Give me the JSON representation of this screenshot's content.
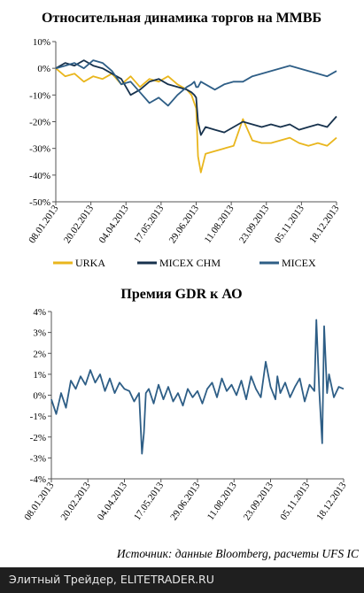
{
  "chart_data": [
    {
      "type": "line",
      "title": "Относительная динамика торгов на ММВБ",
      "x_labels": [
        "08.01.2013",
        "20.02.2013",
        "04.04.2013",
        "17.05.2013",
        "29.06.2013",
        "11.08.2013",
        "23.09.2013",
        "05.11.2013",
        "18.12.2013"
      ],
      "y_ticks": [
        "10%",
        "0%",
        "-10%",
        "-20%",
        "-30%",
        "-40%",
        "-50%"
      ],
      "ylim": [
        -50,
        10
      ],
      "grid": false,
      "legend_position": "bottom",
      "colors": {
        "URKA": "#e9b61d",
        "MICEX CHM": "#17324d",
        "MICEX": "#2e5e86"
      },
      "series": [
        {
          "name": "URKA",
          "x": [
            0,
            10,
            20,
            30,
            40,
            50,
            60,
            70,
            80,
            90,
            100,
            110,
            120,
            130,
            140,
            145,
            148,
            150,
            152,
            155,
            160,
            170,
            180,
            190,
            200,
            210,
            220,
            230,
            240,
            250,
            260,
            270,
            280,
            290,
            300
          ],
          "values": [
            0,
            -3,
            -2,
            -5,
            -3,
            -4,
            -2,
            -6,
            -3,
            -7,
            -4,
            -5,
            -3,
            -6,
            -8,
            -10,
            -13,
            -15,
            -33,
            -39,
            -32,
            -31,
            -30,
            -29,
            -19,
            -27,
            -28,
            -28,
            -27,
            -26,
            -28,
            -29,
            -28,
            -29,
            -26
          ]
        },
        {
          "name": "MICEX CHM",
          "x": [
            0,
            10,
            20,
            30,
            40,
            50,
            60,
            70,
            80,
            90,
            100,
            110,
            120,
            130,
            140,
            145,
            148,
            150,
            152,
            155,
            160,
            170,
            180,
            190,
            200,
            210,
            220,
            230,
            240,
            250,
            260,
            270,
            280,
            290,
            300
          ],
          "values": [
            0,
            2,
            1,
            3,
            1,
            0,
            -2,
            -4,
            -10,
            -8,
            -5,
            -4,
            -6,
            -7,
            -8,
            -9,
            -10,
            -11,
            -20,
            -25,
            -22,
            -23,
            -24,
            -22,
            -20,
            -21,
            -22,
            -21,
            -22,
            -21,
            -23,
            -22,
            -21,
            -22,
            -18
          ]
        },
        {
          "name": "MICEX",
          "x": [
            0,
            10,
            20,
            30,
            40,
            50,
            60,
            70,
            80,
            90,
            100,
            110,
            120,
            130,
            140,
            145,
            148,
            150,
            152,
            155,
            160,
            170,
            180,
            190,
            200,
            210,
            220,
            230,
            240,
            250,
            260,
            270,
            280,
            290,
            300
          ],
          "values": [
            0,
            1,
            2,
            0,
            3,
            2,
            -1,
            -6,
            -5,
            -9,
            -13,
            -11,
            -14,
            -10,
            -7,
            -6,
            -5,
            -7,
            -7,
            -5,
            -6,
            -8,
            -6,
            -5,
            -5,
            -3,
            -2,
            -1,
            0,
            1,
            0,
            -1,
            -2,
            -3,
            -1
          ]
        }
      ]
    },
    {
      "type": "line",
      "title": "Премия GDR к АО",
      "x_labels": [
        "08.01.2013",
        "20.02.2013",
        "04.04.2013",
        "17.05.2013",
        "29.06.2013",
        "11.08.2013",
        "23.09.2013",
        "05.11.2013",
        "18.12.2013"
      ],
      "y_ticks": [
        "4%",
        "3%",
        "2%",
        "1%",
        "0%",
        "-1%",
        "-2%",
        "-3%",
        "-4%"
      ],
      "ylim": [
        -4,
        4
      ],
      "grid": false,
      "series": [
        {
          "name": "",
          "x": [
            0,
            5,
            10,
            15,
            20,
            25,
            30,
            35,
            40,
            45,
            50,
            55,
            60,
            65,
            70,
            75,
            80,
            85,
            90,
            93,
            95,
            97,
            100,
            105,
            110,
            115,
            120,
            125,
            130,
            135,
            140,
            145,
            150,
            155,
            160,
            165,
            170,
            175,
            180,
            185,
            190,
            195,
            200,
            205,
            210,
            215,
            220,
            225,
            230,
            232,
            235,
            240,
            245,
            250,
            255,
            260,
            265,
            270,
            272,
            275,
            278,
            280,
            283,
            285,
            290,
            295,
            300
          ],
          "values": [
            -0.2,
            -0.9,
            0.1,
            -0.6,
            0.7,
            0.3,
            0.9,
            0.5,
            1.2,
            0.6,
            1.0,
            0.2,
            0.8,
            0.1,
            0.6,
            0.3,
            0.2,
            -0.3,
            0.1,
            -2.8,
            -1.8,
            0.1,
            0.3,
            -0.4,
            0.5,
            -0.2,
            0.4,
            -0.3,
            0.1,
            -0.5,
            0.3,
            -0.1,
            0.2,
            -0.4,
            0.3,
            0.6,
            -0.1,
            0.8,
            0.2,
            0.5,
            0.0,
            0.7,
            -0.2,
            0.9,
            0.3,
            -0.1,
            1.6,
            0.4,
            -0.2,
            0.9,
            0.1,
            0.6,
            -0.1,
            0.4,
            0.8,
            -0.3,
            0.5,
            0.2,
            3.6,
            0.2,
            -2.3,
            3.3,
            0.1,
            1.0,
            -0.1,
            0.4,
            0.3
          ]
        }
      ]
    }
  ],
  "source_text": "Источник: данные Bloomberg, расчеты UFS IC",
  "footer_text": "Элитный Трейдер, ELITETRADER.RU"
}
